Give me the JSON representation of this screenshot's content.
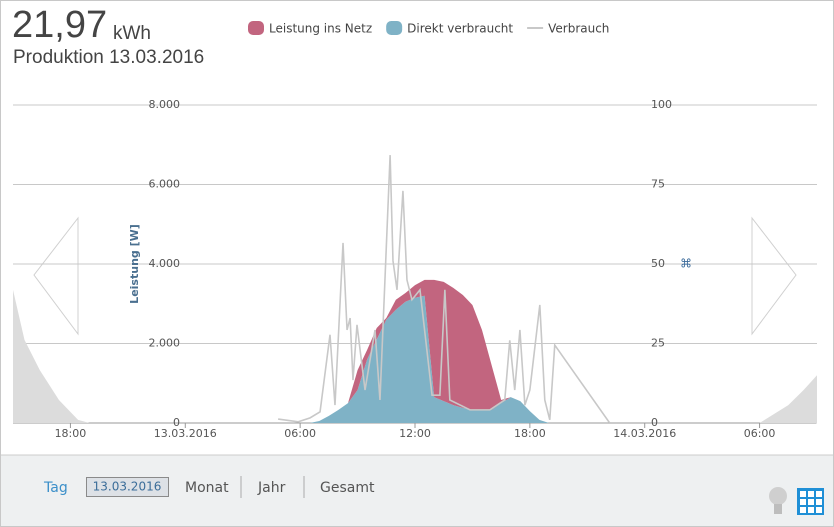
{
  "header": {
    "value": "21,97",
    "unit": "kWh",
    "subtitle": "Produktion 13.03.2016"
  },
  "chart_data": {
    "type": "area",
    "y_label": "Leistung [W]",
    "stacked": true,
    "grid": true,
    "xlim": [
      -9,
      33
    ],
    "xticks": [
      {
        "value": -6,
        "label": "18:00"
      },
      {
        "value": 0,
        "label": "13.03.2016"
      },
      {
        "value": 6,
        "label": "06:00"
      },
      {
        "value": 12,
        "label": "12:00"
      },
      {
        "value": 18,
        "label": "18:00"
      },
      {
        "value": 24,
        "label": "14.03.2016"
      },
      {
        "value": 30,
        "label": "06:00"
      }
    ],
    "ylim": [
      0,
      8000
    ],
    "yticks": [
      0,
      {
        "value": 2000,
        "label": "2.000"
      },
      {
        "value": 4000,
        "label": "4.000"
      },
      {
        "value": 6000,
        "label": "6.000"
      },
      {
        "value": 8000,
        "label": "8.000"
      }
    ],
    "y2lim": [
      0,
      100
    ],
    "y2ticks": [
      0,
      25,
      50,
      75,
      100
    ],
    "x": [
      6.5,
      7,
      7.5,
      8,
      8.5,
      9,
      9.5,
      10,
      10.5,
      11,
      11.5,
      12,
      12.5,
      13,
      13.5,
      14,
      14.5,
      15,
      15.5,
      16,
      16.5,
      17,
      17.5,
      18,
      18.5,
      19
    ],
    "series": [
      {
        "name": "Leistung ins Netz",
        "color": "#c2657f",
        "kind": "area",
        "values": [
          0,
          0,
          0,
          0,
          0,
          500,
          240,
          290,
          40,
          250,
          220,
          320,
          400,
          2950,
          3000,
          2950,
          2840,
          2640,
          2010,
          1130,
          80,
          0,
          0,
          0,
          0,
          0
        ]
      },
      {
        "name": "Direkt verbraucht",
        "color": "#7fb2c6",
        "kind": "area",
        "values": [
          0,
          50,
          180,
          330,
          500,
          830,
          1600,
          2100,
          2600,
          2850,
          3050,
          3150,
          3200,
          650,
          550,
          450,
          380,
          330,
          330,
          330,
          500,
          650,
          550,
          300,
          80,
          0
        ]
      },
      {
        "name": "Verbrauch",
        "color": "#c8c8c8",
        "kind": "line",
        "x": [
          4.85,
          5.9,
          6.52,
          7.04,
          7.56,
          7.82,
          8.24,
          8.45,
          8.61,
          8.76,
          8.97,
          9.39,
          9.91,
          10.17,
          10.7,
          10.85,
          11.06,
          11.37,
          11.58,
          11.84,
          12.26,
          12.89,
          13.3,
          13.56,
          13.82,
          14.87,
          15.91,
          16.69,
          16.95,
          17.21,
          17.48,
          17.74,
          18,
          18.52,
          18.78,
          19.04,
          19.3,
          22.17
        ],
        "values": [
          100,
          30,
          130,
          280,
          2220,
          450,
          4530,
          2340,
          2640,
          1080,
          2470,
          830,
          2340,
          580,
          6740,
          4080,
          3350,
          5840,
          3600,
          3100,
          3350,
          700,
          700,
          3350,
          580,
          330,
          330,
          580,
          2080,
          830,
          2340,
          450,
          830,
          2970,
          580,
          80,
          1960,
          0
        ]
      },
      {
        "color": "#dcdcdc",
        "kind": "area",
        "x": [
          -9,
          -8.4,
          -7.6,
          -6.6,
          -5.6,
          -5,
          12,
          30,
          31.5,
          32.3,
          33
        ],
        "values": [
          3350,
          2090,
          1330,
          580,
          80,
          0,
          null,
          0,
          450,
          830,
          1200
        ]
      }
    ]
  },
  "nav": {
    "tabs": [
      "Tag",
      "Monat",
      "Jahr",
      "Gesamt"
    ],
    "date": "13.03.2016"
  }
}
